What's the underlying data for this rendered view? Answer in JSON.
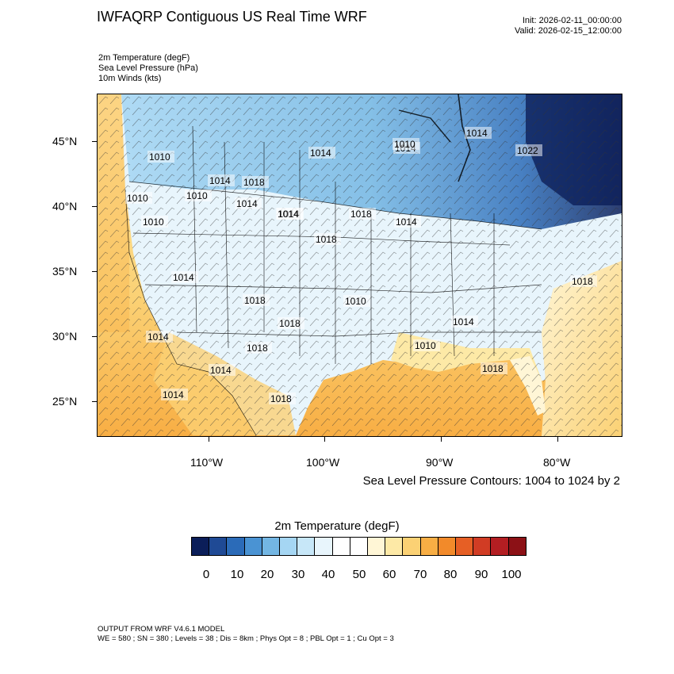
{
  "header": {
    "title": "IWFAQRP Contiguous US Real Time WRF",
    "init": "Init: 2026-02-11_00:00:00",
    "valid": "Valid: 2026-02-15_12:00:00"
  },
  "fields": {
    "line1": "2m Temperature   (degF)",
    "line2": "Sea Level Pressure   (hPa)",
    "line3": "10m Winds   (kts)"
  },
  "map": {
    "lat_labels": [
      "45°N",
      "40°N",
      "35°N",
      "30°N",
      "25°N"
    ],
    "lon_labels": [
      "110°W",
      "100°W",
      "90°W",
      "80°W"
    ],
    "pressure_labels": [
      "1010",
      "1010",
      "1010",
      "1014",
      "1010",
      "1014",
      "1014",
      "1014",
      "1018",
      "1014",
      "1014",
      "1014",
      "1018",
      "1018",
      "1018",
      "1018",
      "1014",
      "1014",
      "1018",
      "1010",
      "1014",
      "1014",
      "1010",
      "1018",
      "1018",
      "1014",
      "1010",
      "1022",
      "1018",
      "1014"
    ],
    "contour_note": "Sea Level Pressure Contours: 1004 to 1024 by 2"
  },
  "colorbar": {
    "title": "2m Temperature  (degF)",
    "colors": [
      "#0b1e59",
      "#1f4a95",
      "#2b6bb8",
      "#4a93d3",
      "#73b6e3",
      "#a5d6f3",
      "#c7e7f8",
      "#e8f5fc",
      "#ffffff",
      "#ffffff",
      "#fff6d6",
      "#fde9a6",
      "#fbd174",
      "#f8ae44",
      "#f28a2a",
      "#e65f25",
      "#d13c24",
      "#b31e22",
      "#8c1116"
    ],
    "labels": [
      "0",
      "10",
      "20",
      "30",
      "40",
      "50",
      "60",
      "70",
      "80",
      "90",
      "100"
    ]
  },
  "footer": {
    "line1": "OUTPUT FROM WRF V4.6.1 MODEL",
    "line2": "WE = 580 ; SN = 380 ; Levels = 38 ; Dis = 8km ; Phys Opt = 8 ; PBL Opt = 1 ; Cu Opt = 3"
  }
}
